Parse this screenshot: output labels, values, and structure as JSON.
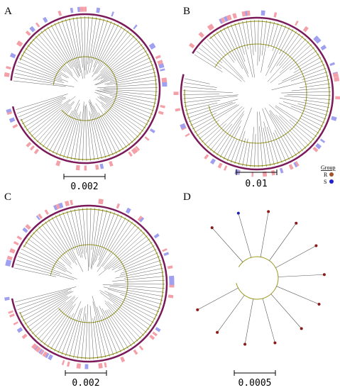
{
  "panels": [
    {
      "label": "A",
      "scale": "0.002"
    },
    {
      "label": "B",
      "scale": "0.01"
    },
    {
      "label": "C",
      "scale": "0.002"
    },
    {
      "label": "D",
      "scale": "0.0005"
    }
  ],
  "legend": {
    "title": "Group",
    "items": [
      "R",
      "S"
    ]
  }
}
